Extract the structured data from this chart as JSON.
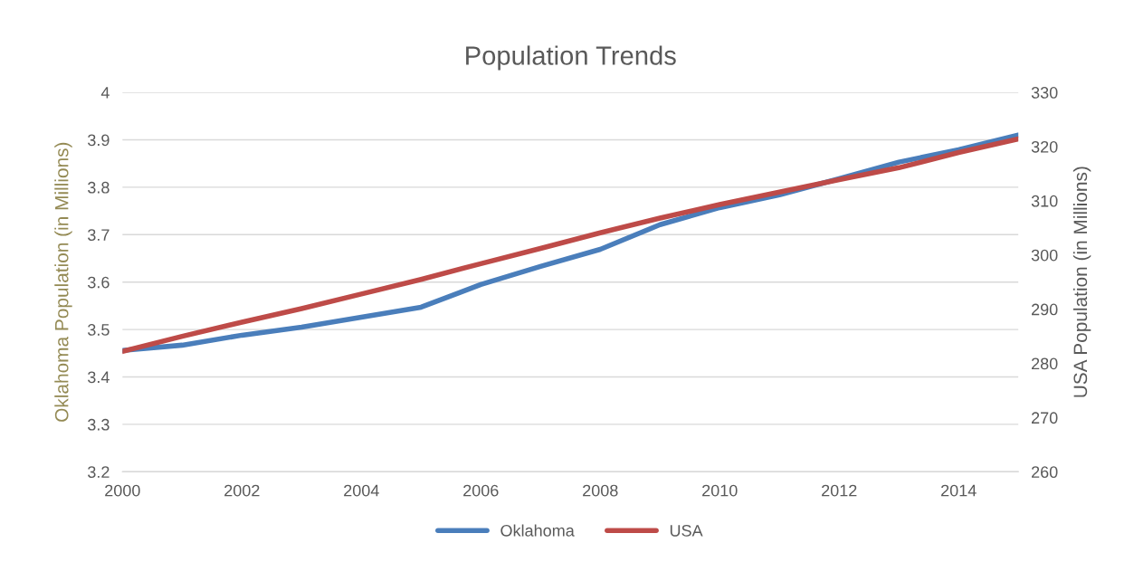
{
  "chart_data": {
    "type": "line",
    "title": "Population Trends",
    "ylabel": "Oklahoma Population (in Millions)",
    "y2label": "USA Population (in Millions)",
    "x": [
      2000,
      2001,
      2002,
      2003,
      2004,
      2005,
      2006,
      2007,
      2008,
      2009,
      2010,
      2011,
      2012,
      2013,
      2014,
      2015
    ],
    "series": [
      {
        "name": "Oklahoma",
        "color": "#4a7ebb",
        "values": [
          3.456,
          3.467,
          3.488,
          3.505,
          3.526,
          3.547,
          3.595,
          3.633,
          3.669,
          3.721,
          3.757,
          3.784,
          3.818,
          3.853,
          3.879,
          3.91
        ]
      },
      {
        "name": "USA",
        "color": "#be4b48",
        "axis": "y2",
        "values": [
          282.2,
          285.0,
          287.6,
          290.1,
          292.8,
          295.5,
          298.4,
          301.2,
          304.1,
          306.8,
          309.3,
          311.6,
          313.9,
          316.1,
          318.9,
          321.4
        ]
      }
    ],
    "xlim": [
      2000,
      2015
    ],
    "xticks": [
      2000,
      2002,
      2004,
      2006,
      2008,
      2010,
      2012,
      2014
    ],
    "ylim": [
      3.2,
      4
    ],
    "yticks": [
      3.2,
      3.3,
      3.4,
      3.5,
      3.6,
      3.7,
      3.8,
      3.9,
      4
    ],
    "y2lim": [
      260,
      330
    ],
    "y2ticks": [
      260,
      270,
      280,
      290,
      300,
      310,
      320,
      330
    ],
    "grid": "y",
    "legend": "bottom",
    "marker": "none",
    "line_style": "solid"
  }
}
